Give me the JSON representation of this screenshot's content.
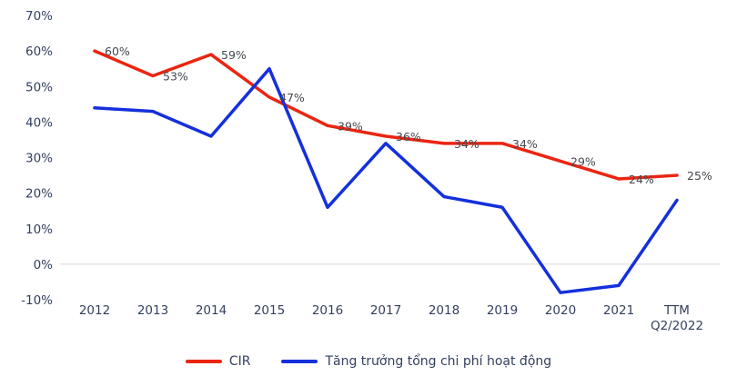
{
  "colors": {
    "cir_line": "#EA2512",
    "cost_growth_line": "#1430DC",
    "axis_text": "#33405F",
    "data_label_text": "#44484F",
    "zero_axis_line": "#D9D9D9",
    "background": "#FFFFFF"
  },
  "chart_data": {
    "type": "line",
    "title": "",
    "xlabel": "",
    "ylabel": "",
    "categories": [
      "2012",
      "2013",
      "2014",
      "2015",
      "2016",
      "2017",
      "2018",
      "2019",
      "2020",
      "2021",
      "TTM\nQ2/2022"
    ],
    "series": [
      {
        "name": "CIR",
        "color": "#EA2512",
        "values": [
          60,
          53,
          59,
          47,
          39,
          36,
          34,
          34,
          29,
          24,
          25
        ],
        "labels": [
          "60%",
          "53%",
          "59%",
          "47%",
          "39%",
          "36%",
          "34%",
          "34%",
          "29%",
          "24%",
          "25%"
        ]
      },
      {
        "name": "Tăng trưởng tổng chi phí hoạt động",
        "color": "#1430DC",
        "values": [
          44,
          43,
          36,
          55,
          16,
          34,
          19,
          16,
          -8,
          -6,
          18
        ],
        "labels": []
      }
    ],
    "ylim": [
      -10,
      70
    ],
    "y_ticks": [
      "70%",
      "60%",
      "50%",
      "40%",
      "30%",
      "20%",
      "10%",
      "0%",
      "-10%"
    ],
    "grid": "none (only category axis line at 0%)",
    "legend_position": "bottom"
  }
}
